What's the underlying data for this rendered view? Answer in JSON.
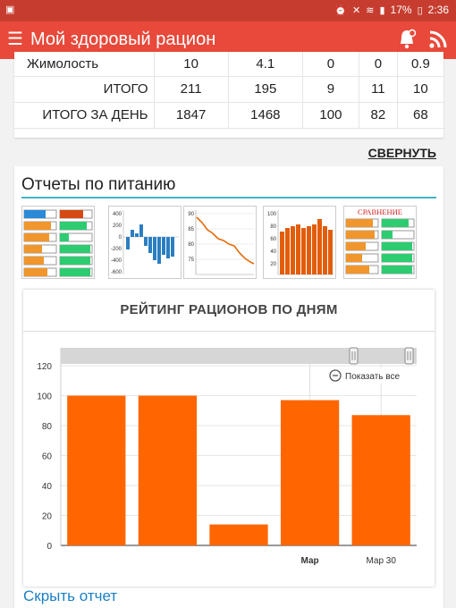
{
  "status_bar": {
    "battery": "17%",
    "time": "2:36"
  },
  "app_bar": {
    "title": "Мой здоровый рацион",
    "menu_icon": "hamburger-icon",
    "bell_icon": "bell-icon",
    "feed_icon": "rss-icon"
  },
  "nutrition_table": {
    "rows": [
      {
        "name": "Жимолость",
        "values": [
          "10",
          "4.1",
          "0",
          "0",
          "0.9"
        ]
      },
      {
        "name": "ИТОГО",
        "values": [
          "211",
          "195",
          "9",
          "11",
          "10"
        ]
      },
      {
        "name": "ИТОГО ЗА ДЕНЬ",
        "values": [
          "1847",
          "1468",
          "100",
          "82",
          "68"
        ]
      }
    ]
  },
  "collapse_label": "СВЕРНУТЬ",
  "reports": {
    "title": "Отчеты по питанию",
    "comparison_label": "СРАВНЕНИЕ"
  },
  "chart_data": {
    "type": "bar",
    "title": "РЕЙТИНГ РАЦИОНОВ ПО ДНЯМ",
    "values": [
      100,
      100,
      14,
      97,
      87
    ],
    "x_tick_labels": [
      "Мар",
      "Мар 30"
    ],
    "y_ticks": [
      0,
      20,
      40,
      60,
      80,
      100,
      120
    ],
    "ylim": [
      0,
      120
    ],
    "bar_color": "#ff6600",
    "reset_zoom_label": "Показать все",
    "grid": true
  },
  "hide_report_label": "Скрыть отчет",
  "colors": {
    "appbar": "#e8493a",
    "statusbar": "#c63d2f",
    "accent_line": "#45b3c4",
    "link": "#1a7fc4"
  }
}
